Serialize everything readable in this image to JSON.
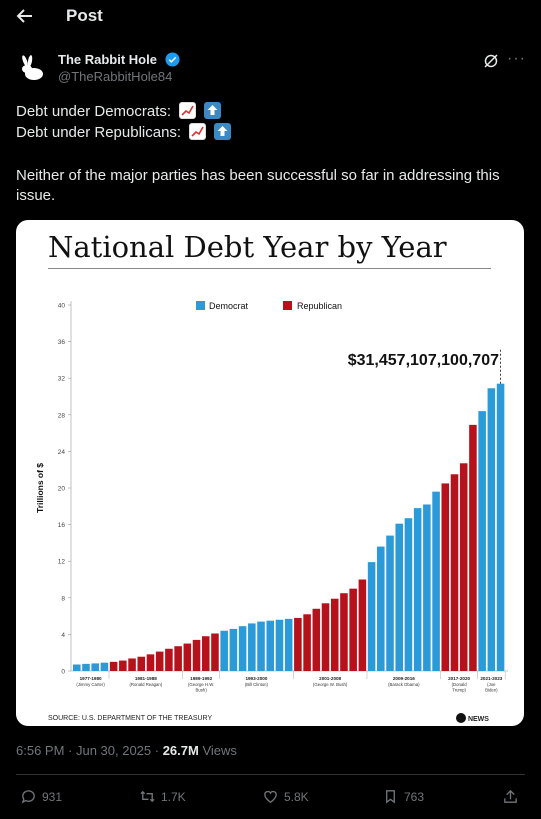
{
  "header": {
    "title": "Post"
  },
  "author": {
    "name": "The Rabbit Hole",
    "handle": "@TheRabbitHole84"
  },
  "post": {
    "line1": "Debt under Democrats:",
    "line2": "Debt under Republicans:",
    "paragraph": "Neither of the major parties has been successful so far in addressing this issue.",
    "time": "6:56 PM · Jun 30, 2025 · ",
    "views_count": "26.7M",
    "views_label": " Views"
  },
  "image": {
    "title": "National Debt Year by Year",
    "source": "SOURCE: U.S. DEPARTMENT OF THE TREASURY",
    "logo_text": "NEWS"
  },
  "stats": {
    "replies": "931",
    "reposts": "1.7K",
    "likes": "5.8K",
    "bookmarks": "763"
  },
  "colors": {
    "democrat": "#2b9ad8",
    "republican": "#b5121b"
  },
  "chart_data": {
    "type": "bar",
    "ylabel": "Trillions of $",
    "ylim": [
      0,
      40
    ],
    "yticks": [
      0,
      4,
      8,
      12,
      16,
      20,
      24,
      28,
      32,
      36,
      40
    ],
    "legend": [
      "Democrat",
      "Republican"
    ],
    "annotation": "$31,457,107,100,707",
    "series": [
      {
        "name": "Democrat",
        "values_by_bar": "see bars"
      },
      {
        "name": "Republican",
        "values_by_bar": "see bars"
      }
    ],
    "bars": [
      {
        "v": 0.71,
        "p": "D"
      },
      {
        "v": 0.78,
        "p": "D"
      },
      {
        "v": 0.83,
        "p": "D"
      },
      {
        "v": 0.91,
        "p": "D"
      },
      {
        "v": 1.0,
        "p": "R"
      },
      {
        "v": 1.14,
        "p": "R"
      },
      {
        "v": 1.37,
        "p": "R"
      },
      {
        "v": 1.56,
        "p": "R"
      },
      {
        "v": 1.82,
        "p": "R"
      },
      {
        "v": 2.12,
        "p": "R"
      },
      {
        "v": 2.43,
        "p": "R"
      },
      {
        "v": 2.71,
        "p": "R"
      },
      {
        "v": 3.0,
        "p": "R"
      },
      {
        "v": 3.4,
        "p": "R"
      },
      {
        "v": 3.8,
        "p": "R"
      },
      {
        "v": 4.1,
        "p": "R"
      },
      {
        "v": 4.4,
        "p": "D"
      },
      {
        "v": 4.6,
        "p": "D"
      },
      {
        "v": 4.9,
        "p": "D"
      },
      {
        "v": 5.2,
        "p": "D"
      },
      {
        "v": 5.4,
        "p": "D"
      },
      {
        "v": 5.5,
        "p": "D"
      },
      {
        "v": 5.6,
        "p": "D"
      },
      {
        "v": 5.7,
        "p": "D"
      },
      {
        "v": 5.8,
        "p": "R"
      },
      {
        "v": 6.2,
        "p": "R"
      },
      {
        "v": 6.8,
        "p": "R"
      },
      {
        "v": 7.4,
        "p": "R"
      },
      {
        "v": 7.9,
        "p": "R"
      },
      {
        "v": 8.5,
        "p": "R"
      },
      {
        "v": 9.0,
        "p": "R"
      },
      {
        "v": 10.0,
        "p": "R"
      },
      {
        "v": 11.9,
        "p": "D"
      },
      {
        "v": 13.6,
        "p": "D"
      },
      {
        "v": 14.8,
        "p": "D"
      },
      {
        "v": 16.1,
        "p": "D"
      },
      {
        "v": 16.7,
        "p": "D"
      },
      {
        "v": 17.8,
        "p": "D"
      },
      {
        "v": 18.2,
        "p": "D"
      },
      {
        "v": 19.6,
        "p": "D"
      },
      {
        "v": 20.5,
        "p": "R"
      },
      {
        "v": 21.5,
        "p": "R"
      },
      {
        "v": 22.7,
        "p": "R"
      },
      {
        "v": 26.9,
        "p": "R"
      },
      {
        "v": 28.4,
        "p": "D"
      },
      {
        "v": 30.9,
        "p": "D"
      },
      {
        "v": 31.4,
        "p": "D"
      }
    ],
    "periods": [
      {
        "label": "1977-1980",
        "sub": "(Jimmy Carter)",
        "start": 0,
        "end": 3
      },
      {
        "label": "1981-1988",
        "sub": "(Ronald Reagan)",
        "start": 4,
        "end": 11
      },
      {
        "label": "1989-1992",
        "sub": "(George H.W.|Bush)",
        "start": 12,
        "end": 15
      },
      {
        "label": "1993-2000",
        "sub": "(Bill Clinton)",
        "start": 16,
        "end": 23
      },
      {
        "label": "2001-2008",
        "sub": "(George W. Bush)",
        "start": 24,
        "end": 31
      },
      {
        "label": "2009-2016",
        "sub": "(Barack Obama)",
        "start": 32,
        "end": 39
      },
      {
        "label": "2017-2020",
        "sub": "(Donald|Trump)",
        "start": 40,
        "end": 43
      },
      {
        "label": "2021-2023",
        "sub": "(Joe|Biden)",
        "start": 44,
        "end": 46
      }
    ]
  }
}
